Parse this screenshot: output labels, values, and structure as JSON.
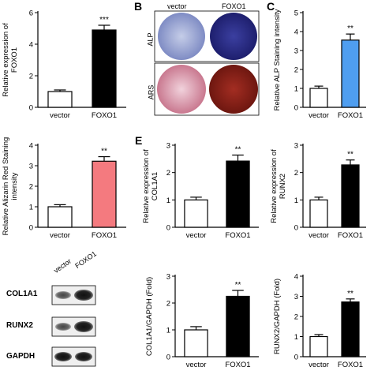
{
  "colors": {
    "black": "#000000",
    "white": "#ffffff",
    "blue": "#4f9ef0",
    "pink": "#f47a7f",
    "alp_vector": "#a7b3da",
    "alp_foxo1": "#2d2f8c",
    "ars_vector": "#e8b8c8",
    "ars_foxo1": "#8e2218"
  },
  "panels": {
    "B": {
      "letter": "B",
      "col_vector": "vector",
      "col_foxo1": "FOXO1",
      "row_alp": "ALP",
      "row_ars": "ARS"
    },
    "C": {
      "letter": "C"
    },
    "E": {
      "letter": "E"
    },
    "blot": {
      "lane_vector": "vector",
      "lane_foxo1": "FOXO1",
      "rows": [
        "COL1A1",
        "RUNX2",
        "GAPDH"
      ]
    }
  },
  "chart_data": [
    {
      "id": "foxo1",
      "type": "bar",
      "categories": [
        "vector",
        "FOXO1"
      ],
      "values": [
        1.0,
        4.9
      ],
      "errors": [
        0.1,
        0.3
      ],
      "significance": [
        "",
        "***"
      ],
      "ylim": [
        0,
        6
      ],
      "yticks": [
        0,
        2,
        4,
        6
      ],
      "ylabel_lines": [
        "Relative expression of",
        "FOXO1"
      ],
      "fills": [
        "#ffffff",
        "#000000"
      ]
    },
    {
      "id": "alp",
      "type": "bar",
      "categories": [
        "vector",
        "FOXO1"
      ],
      "values": [
        1.0,
        3.55
      ],
      "errors": [
        0.12,
        0.32
      ],
      "significance": [
        "",
        "**"
      ],
      "ylim": [
        0,
        5
      ],
      "yticks": [
        0,
        1,
        2,
        3,
        4,
        5
      ],
      "ylabel_lines": [
        "Relative ALP Staining intensity"
      ],
      "fills": [
        "#ffffff",
        "#4f9ef0"
      ]
    },
    {
      "id": "ars",
      "type": "bar",
      "categories": [
        "vector",
        "FOXO1"
      ],
      "values": [
        1.0,
        3.22
      ],
      "errors": [
        0.1,
        0.22
      ],
      "significance": [
        "",
        "**"
      ],
      "ylim": [
        0,
        4
      ],
      "yticks": [
        0,
        1,
        2,
        3,
        4
      ],
      "ylabel_lines": [
        "Relative Alizarin Red Staining",
        "intensity"
      ],
      "fills": [
        "#ffffff",
        "#f47a7f"
      ]
    },
    {
      "id": "col1a1",
      "type": "bar",
      "categories": [
        "vector",
        "FOXO1"
      ],
      "values": [
        1.0,
        2.42
      ],
      "errors": [
        0.1,
        0.22
      ],
      "significance": [
        "",
        "**"
      ],
      "ylim": [
        0,
        3
      ],
      "yticks": [
        0,
        1,
        2,
        3
      ],
      "ylabel_lines": [
        "Relative expression of",
        "COL1A1"
      ],
      "fills": [
        "#ffffff",
        "#000000"
      ]
    },
    {
      "id": "runx2",
      "type": "bar",
      "categories": [
        "vector",
        "FOXO1"
      ],
      "values": [
        1.0,
        2.28
      ],
      "errors": [
        0.1,
        0.18
      ],
      "significance": [
        "",
        "**"
      ],
      "ylim": [
        0,
        3
      ],
      "yticks": [
        0,
        1,
        2,
        3
      ],
      "ylabel_lines": [
        "Relative expression of",
        "RUNX2"
      ],
      "fills": [
        "#ffffff",
        "#000000"
      ]
    },
    {
      "id": "col1a1_gapdh",
      "type": "bar",
      "categories": [
        "vector",
        "FOXO1"
      ],
      "values": [
        1.0,
        2.25
      ],
      "errors": [
        0.12,
        0.22
      ],
      "significance": [
        "",
        "**"
      ],
      "ylim": [
        0,
        3
      ],
      "yticks": [
        0,
        1,
        2,
        3
      ],
      "ylabel_lines": [
        "COL1A1/GAPDH (Fold)"
      ],
      "fills": [
        "#ffffff",
        "#000000"
      ]
    },
    {
      "id": "runx2_gapdh",
      "type": "bar",
      "categories": [
        "vector",
        "FOXO1"
      ],
      "values": [
        1.0,
        2.72
      ],
      "errors": [
        0.1,
        0.15
      ],
      "significance": [
        "",
        "**"
      ],
      "ylim": [
        0,
        4
      ],
      "yticks": [
        0,
        1,
        2,
        3,
        4
      ],
      "ylabel_lines": [
        "RUNX2/GAPDH (Fold)"
      ],
      "fills": [
        "#ffffff",
        "#000000"
      ]
    }
  ]
}
